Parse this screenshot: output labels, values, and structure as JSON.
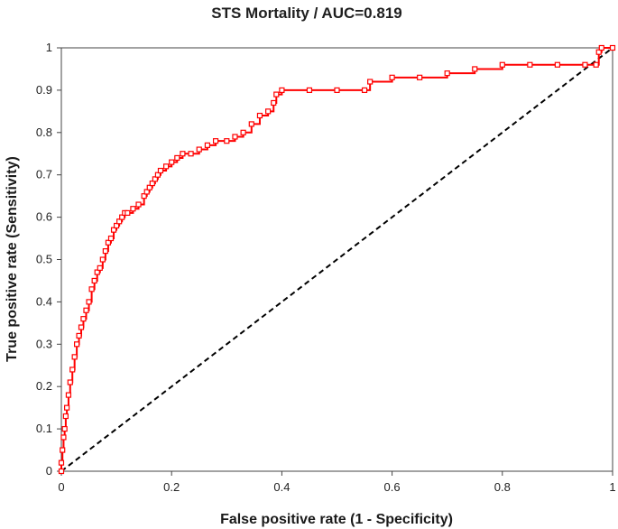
{
  "chart_data": {
    "type": "line",
    "title": "STS Mortality / AUC=0.819",
    "xlabel": "False positive rate (1 - Specificity)",
    "ylabel": "True positive rate (Sensitivity)",
    "xlim": [
      0,
      1
    ],
    "ylim": [
      0,
      1
    ],
    "x_ticks": [
      "0",
      "0.2",
      "0.4",
      "0.6",
      "0.8",
      "1"
    ],
    "y_ticks": [
      "0",
      "0.1",
      "0.2",
      "0.3",
      "0.4",
      "0.5",
      "0.6",
      "0.7",
      "0.8",
      "0.9",
      "1"
    ],
    "grid": false,
    "legend": "none",
    "series": [
      {
        "color": "#ff0000",
        "style": "solid-line-square-markers",
        "x": [
          0,
          0,
          0.002,
          0.004,
          0.006,
          0.008,
          0.01,
          0.013,
          0.016,
          0.02,
          0.024,
          0.028,
          0.032,
          0.036,
          0.04,
          0.045,
          0.05,
          0.055,
          0.06,
          0.065,
          0.07,
          0.075,
          0.08,
          0.085,
          0.09,
          0.095,
          0.1,
          0.105,
          0.11,
          0.115,
          0.12,
          0.13,
          0.14,
          0.15,
          0.155,
          0.16,
          0.165,
          0.17,
          0.175,
          0.18,
          0.19,
          0.2,
          0.21,
          0.22,
          0.235,
          0.25,
          0.265,
          0.28,
          0.3,
          0.315,
          0.33,
          0.345,
          0.36,
          0.375,
          0.385,
          0.39,
          0.4,
          0.45,
          0.5,
          0.55,
          0.56,
          0.6,
          0.65,
          0.7,
          0.75,
          0.8,
          0.85,
          0.9,
          0.95,
          0.97,
          0.975,
          0.98,
          1.0
        ],
        "y": [
          0,
          0.02,
          0.05,
          0.08,
          0.1,
          0.13,
          0.15,
          0.18,
          0.21,
          0.24,
          0.27,
          0.3,
          0.32,
          0.34,
          0.36,
          0.38,
          0.4,
          0.43,
          0.45,
          0.47,
          0.48,
          0.5,
          0.52,
          0.54,
          0.55,
          0.57,
          0.58,
          0.59,
          0.6,
          0.61,
          0.61,
          0.62,
          0.63,
          0.65,
          0.66,
          0.67,
          0.68,
          0.69,
          0.7,
          0.71,
          0.72,
          0.73,
          0.74,
          0.75,
          0.75,
          0.76,
          0.77,
          0.78,
          0.78,
          0.79,
          0.8,
          0.82,
          0.84,
          0.85,
          0.87,
          0.89,
          0.9,
          0.9,
          0.9,
          0.9,
          0.92,
          0.93,
          0.93,
          0.94,
          0.95,
          0.96,
          0.96,
          0.96,
          0.96,
          0.96,
          0.99,
          1.0,
          1.0
        ]
      },
      {
        "color": "#000000",
        "style": "dashed-line",
        "x": [
          0,
          1
        ],
        "y": [
          0,
          1
        ]
      }
    ]
  }
}
